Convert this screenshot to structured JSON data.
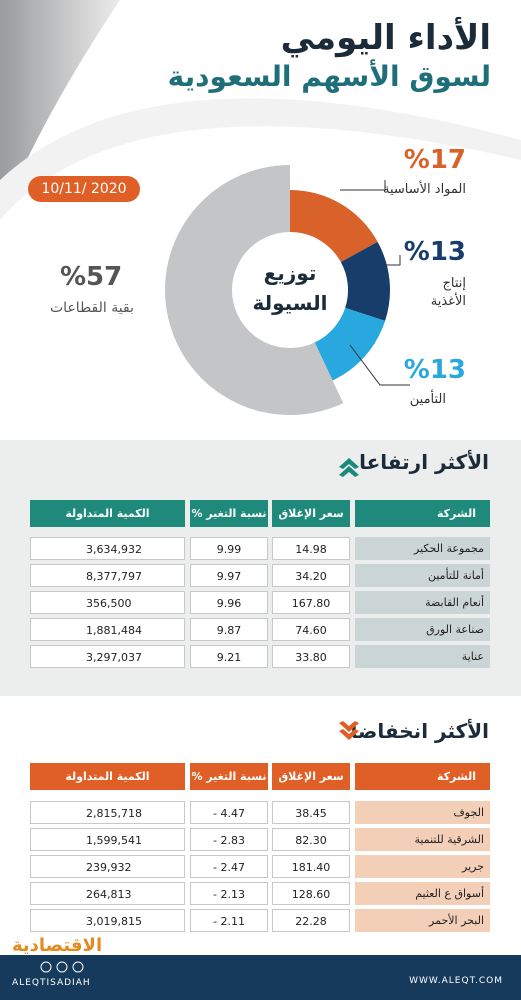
{
  "header": {
    "title": "الأداء اليومي",
    "subtitle": "لسوق الأسهم السعودية",
    "date": "10/11/ 2020"
  },
  "chart_data": {
    "type": "pie",
    "title": "توزيع السيولة",
    "categories": [
      "المواد الأساسية",
      "إنتاج الأغذية",
      "التأمين",
      "بقية القطاعات"
    ],
    "values": [
      17,
      13,
      13,
      57
    ],
    "value_labels": [
      "%17",
      "%13",
      "%13",
      "%57"
    ],
    "colors": [
      "#d9622b",
      "#173d6b",
      "#29a8e0",
      "#c4c5c7"
    ]
  },
  "gainers": {
    "title": "الأكثر ارتفاعا",
    "columns": [
      "الشركة",
      "سعر الإغلاق",
      "نسبة التغير %",
      "الكمية المتداولة"
    ],
    "rows": [
      [
        "مجموعة الحكير",
        "14.98",
        "9.99",
        "3,634,932"
      ],
      [
        "أمانة للتأمين",
        "34.20",
        "9.97",
        "8,377,797"
      ],
      [
        "أنعام القابضة",
        "167.80",
        "9.96",
        "356,500"
      ],
      [
        "صناعة الورق",
        "74.60",
        "9.87",
        "1,881,484"
      ],
      [
        "عناية",
        "33.80",
        "9.21",
        "3,297,037"
      ]
    ]
  },
  "losers": {
    "title": "الأكثر انخفاضا",
    "columns": [
      "الشركة",
      "سعر الإغلاق",
      "نسبة التغير %",
      "الكمية المتداولة"
    ],
    "rows": [
      [
        "الجوف",
        "38.45",
        "- 4.47",
        "2,815,718"
      ],
      [
        "الشرقية للتنمية",
        "82.30",
        "- 2.83",
        "1,599,541"
      ],
      [
        "جرير",
        "181.40",
        "- 2.47",
        "239,932"
      ],
      [
        "أسواق ع العثيم",
        "128.60",
        "- 2.13",
        "264,813"
      ],
      [
        "البحر الأحمر",
        "22.28",
        "- 2.11",
        "3,019,815"
      ]
    ]
  },
  "footer": {
    "logo": "الاقتصادية",
    "handle": "ALEQTISADIAH",
    "website": "WWW.ALEQT.COM"
  }
}
